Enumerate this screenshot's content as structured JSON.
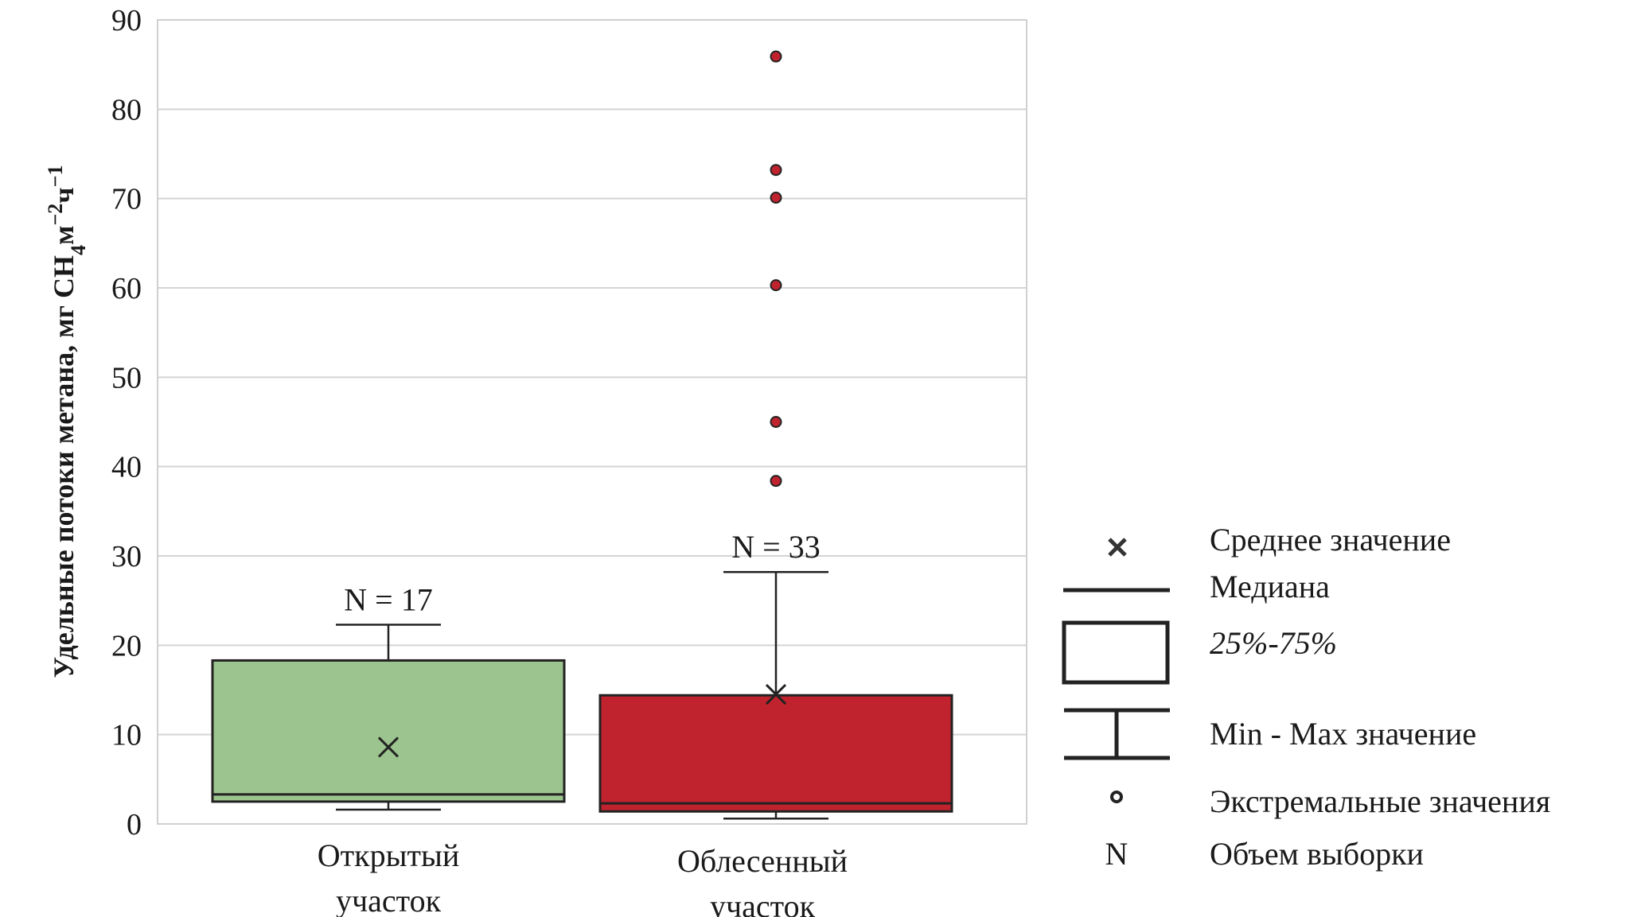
{
  "chart_data": {
    "type": "boxplot",
    "ylabel": {
      "main": "Удельные потоки метана, мг СН",
      "sub": "4",
      "unit": "м",
      "exp1": "−2",
      "unit2": "ч",
      "exp2": "−1"
    },
    "ylim": [
      0,
      90
    ],
    "yticks": [
      0,
      10,
      20,
      30,
      40,
      50,
      60,
      70,
      80,
      90
    ],
    "grid": true,
    "categories": [
      {
        "label_lines": [
          "Открытый",
          "участок"
        ],
        "min": 1.6,
        "q1": 2.5,
        "median": 3.3,
        "q3": 18.3,
        "max": 22.3,
        "mean": 8.6,
        "outliers": [],
        "n_label": "N = 17",
        "color": "#9cc48e"
      },
      {
        "label_lines": [
          "Облесенный",
          "участок"
        ],
        "min": 0.6,
        "q1": 1.4,
        "median": 2.3,
        "q3": 14.4,
        "max": 28.2,
        "mean": 14.5,
        "outliers": [
          38.4,
          45.0,
          60.3,
          70.1,
          73.2,
          85.9
        ],
        "n_label": "N = 33",
        "color": "#c0232e"
      }
    ]
  },
  "legend": [
    {
      "icon": "mean-marker-icon",
      "text": "Среднее значение"
    },
    {
      "icon": "median-line-icon",
      "text": "Медиана"
    },
    {
      "icon": "box-icon",
      "text": "25%-75%"
    },
    {
      "icon": "whisker-icon",
      "text": "Min - Max значение"
    },
    {
      "icon": "outlier-dot-icon",
      "text": "Экстремальные значения"
    },
    {
      "icon": "n-letter-icon",
      "symbol": "N",
      "text": "Объем выборки"
    }
  ]
}
